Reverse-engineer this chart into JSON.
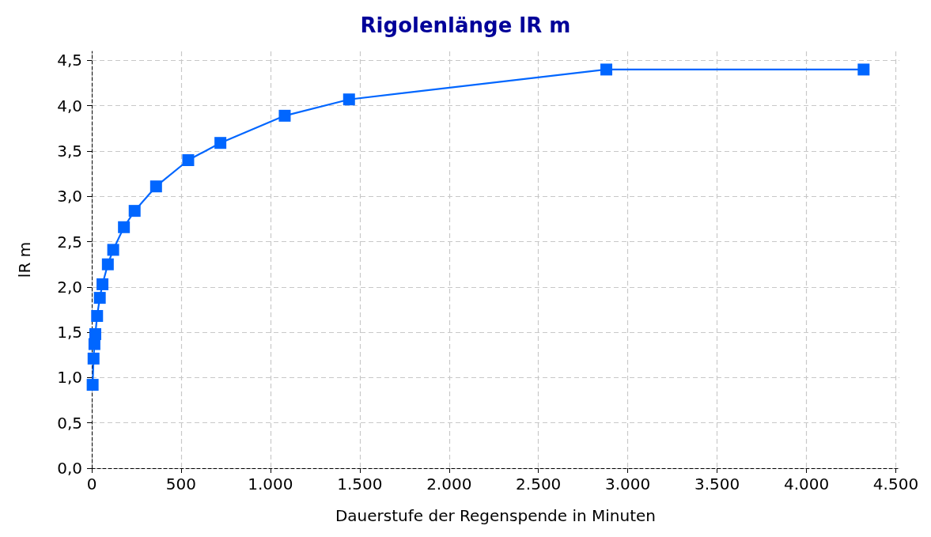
{
  "chart_data": {
    "type": "line",
    "title": "Rigolenlänge lR m",
    "xlabel": "Dauerstufe der Regenspende in Minuten",
    "ylabel": "lR m",
    "x": [
      5,
      10,
      15,
      20,
      30,
      45,
      60,
      90,
      120,
      180,
      240,
      360,
      540,
      720,
      1080,
      1440,
      2880,
      4320
    ],
    "series": [
      {
        "color": "#0066ff",
        "values": [
          0.92,
          1.21,
          1.37,
          1.48,
          1.68,
          1.88,
          2.03,
          2.25,
          2.41,
          2.66,
          2.84,
          3.11,
          3.4,
          3.59,
          3.89,
          4.07,
          4.4,
          4.4
        ]
      }
    ],
    "xlim": [
      0,
      4520
    ],
    "xticks": [
      0,
      500,
      {
        "value": 1000,
        "label": "1.000"
      },
      {
        "value": 1500,
        "label": "1.500"
      },
      {
        "value": 2000,
        "label": "2.000"
      },
      {
        "value": 2500,
        "label": "2.500"
      },
      {
        "value": 3000,
        "label": "3.000"
      },
      {
        "value": 3500,
        "label": "3.500"
      },
      {
        "value": 4000,
        "label": "4.000"
      },
      {
        "value": 4500,
        "label": "4.500"
      }
    ],
    "ylim": [
      0,
      4.6
    ],
    "yticks": [
      {
        "value": 0,
        "label": "0,0"
      },
      {
        "value": 0.5,
        "label": "0,5"
      },
      {
        "value": 1,
        "label": "1,0"
      },
      {
        "value": 1.5,
        "label": "1,5"
      },
      {
        "value": 2,
        "label": "2,0"
      },
      {
        "value": 2.5,
        "label": "2,5"
      },
      {
        "value": 3,
        "label": "3,0"
      },
      {
        "value": 3.5,
        "label": "3,5"
      },
      {
        "value": 4,
        "label": "4,0"
      },
      {
        "value": 4.5,
        "label": "4,5"
      }
    ],
    "grid": true,
    "marker": "square",
    "line_style": "solid"
  }
}
